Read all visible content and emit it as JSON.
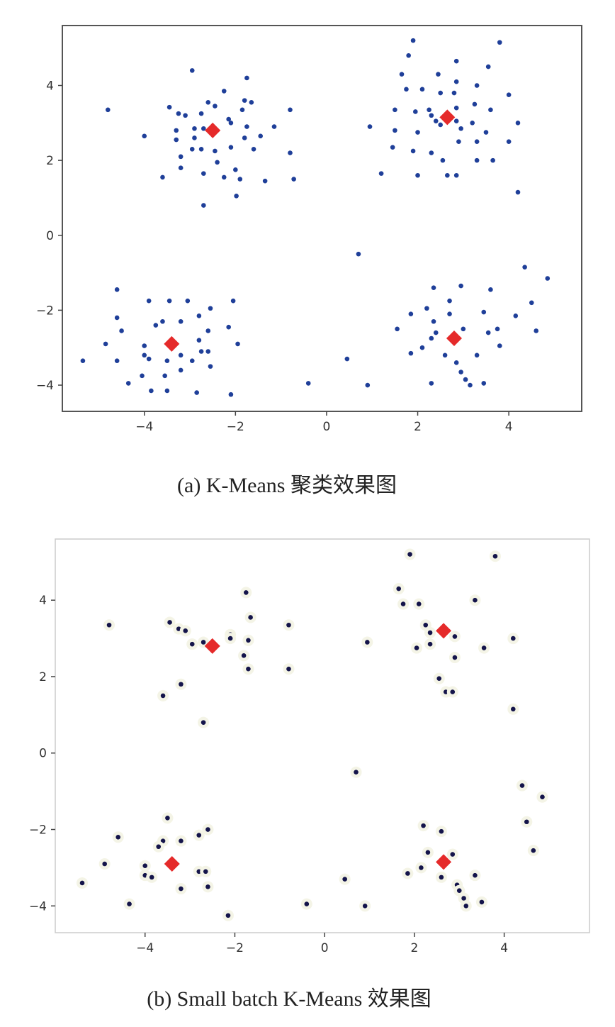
{
  "colors": {
    "points": "#1f3f99",
    "points_b": "#14144a",
    "centroids": "#e52a2a"
  },
  "chart_data": [
    {
      "type": "scatter",
      "caption": "(a) K-Means 聚类效果图",
      "xlim": [
        -5.8,
        5.6
      ],
      "ylim": [
        -4.7,
        5.6
      ],
      "xticks": [
        -4,
        -2,
        0,
        2,
        4
      ],
      "yticks": [
        -4,
        -2,
        0,
        2,
        4
      ],
      "xtick_labels": [
        "−4",
        "−2",
        "0",
        "2",
        "4"
      ],
      "ytick_labels": [
        "−4",
        "−2",
        "0",
        "2",
        "4"
      ],
      "grid": false,
      "points": [
        [
          -2.95,
          4.4
        ],
        [
          -2.6,
          3.55
        ],
        [
          -1.75,
          4.2
        ],
        [
          -4.8,
          3.35
        ],
        [
          -3.45,
          3.42
        ],
        [
          -3.25,
          3.25
        ],
        [
          -3.1,
          3.2
        ],
        [
          -2.75,
          3.25
        ],
        [
          -2.45,
          3.45
        ],
        [
          -2.25,
          3.85
        ],
        [
          -1.85,
          3.35
        ],
        [
          -1.65,
          3.55
        ],
        [
          -1.8,
          3.6
        ],
        [
          -0.8,
          3.35
        ],
        [
          -3.3,
          2.8
        ],
        [
          -2.9,
          2.85
        ],
        [
          -2.7,
          2.85
        ],
        [
          -2.5,
          2.9
        ],
        [
          -2.1,
          3.0
        ],
        [
          -2.15,
          3.1
        ],
        [
          -1.75,
          2.9
        ],
        [
          -1.45,
          2.65
        ],
        [
          -1.15,
          2.9
        ],
        [
          -4.0,
          2.65
        ],
        [
          -3.3,
          2.55
        ],
        [
          -2.9,
          2.6
        ],
        [
          -2.45,
          2.25
        ],
        [
          -2.1,
          2.35
        ],
        [
          -1.8,
          2.6
        ],
        [
          -1.6,
          2.3
        ],
        [
          -3.2,
          2.1
        ],
        [
          -2.95,
          2.3
        ],
        [
          -2.75,
          2.3
        ],
        [
          -2.4,
          1.95
        ],
        [
          -2.25,
          1.55
        ],
        [
          -2.0,
          1.75
        ],
        [
          -1.9,
          1.5
        ],
        [
          -1.35,
          1.45
        ],
        [
          -0.8,
          2.2
        ],
        [
          -0.72,
          1.5
        ],
        [
          -3.6,
          1.55
        ],
        [
          -3.2,
          1.8
        ],
        [
          -2.7,
          1.65
        ],
        [
          -2.7,
          0.8
        ],
        [
          -1.98,
          1.05
        ],
        [
          1.9,
          5.2
        ],
        [
          3.8,
          5.15
        ],
        [
          1.8,
          4.8
        ],
        [
          2.85,
          4.65
        ],
        [
          3.55,
          4.5
        ],
        [
          1.65,
          4.3
        ],
        [
          2.45,
          4.3
        ],
        [
          2.85,
          4.1
        ],
        [
          3.3,
          4.0
        ],
        [
          1.75,
          3.9
        ],
        [
          2.1,
          3.9
        ],
        [
          2.5,
          3.8
        ],
        [
          2.8,
          3.8
        ],
        [
          4.0,
          3.75
        ],
        [
          1.5,
          3.35
        ],
        [
          1.95,
          3.3
        ],
        [
          2.25,
          3.35
        ],
        [
          2.85,
          3.4
        ],
        [
          3.25,
          3.5
        ],
        [
          3.6,
          3.35
        ],
        [
          2.3,
          3.2
        ],
        [
          2.4,
          3.05
        ],
        [
          2.85,
          3.05
        ],
        [
          3.2,
          3.0
        ],
        [
          4.2,
          3.0
        ],
        [
          0.95,
          2.9
        ],
        [
          1.5,
          2.8
        ],
        [
          2.0,
          2.75
        ],
        [
          2.5,
          2.95
        ],
        [
          2.95,
          2.85
        ],
        [
          3.5,
          2.75
        ],
        [
          1.45,
          2.35
        ],
        [
          1.9,
          2.25
        ],
        [
          2.3,
          2.2
        ],
        [
          2.9,
          2.5
        ],
        [
          3.3,
          2.5
        ],
        [
          4.0,
          2.5
        ],
        [
          2.55,
          2.0
        ],
        [
          3.3,
          2.0
        ],
        [
          3.65,
          2.0
        ],
        [
          1.2,
          1.65
        ],
        [
          2.0,
          1.6
        ],
        [
          2.65,
          1.6
        ],
        [
          2.85,
          1.6
        ],
        [
          4.2,
          1.15
        ],
        [
          -4.6,
          -1.45
        ],
        [
          -3.9,
          -1.75
        ],
        [
          -3.45,
          -1.75
        ],
        [
          -3.05,
          -1.75
        ],
        [
          -2.55,
          -1.95
        ],
        [
          -2.05,
          -1.75
        ],
        [
          -4.6,
          -2.2
        ],
        [
          -3.6,
          -2.3
        ],
        [
          -3.2,
          -2.3
        ],
        [
          -2.8,
          -2.15
        ],
        [
          -4.5,
          -2.55
        ],
        [
          -3.75,
          -2.4
        ],
        [
          -2.6,
          -2.55
        ],
        [
          -2.15,
          -2.45
        ],
        [
          -4.85,
          -2.9
        ],
        [
          -4.0,
          -2.95
        ],
        [
          -2.8,
          -2.8
        ],
        [
          -1.95,
          -2.9
        ],
        [
          -4.0,
          -3.2
        ],
        [
          -3.9,
          -3.3
        ],
        [
          -3.2,
          -3.2
        ],
        [
          -2.75,
          -3.1
        ],
        [
          -2.6,
          -3.1
        ],
        [
          -5.35,
          -3.35
        ],
        [
          -4.6,
          -3.35
        ],
        [
          -3.5,
          -3.35
        ],
        [
          -2.95,
          -3.35
        ],
        [
          -3.2,
          -3.6
        ],
        [
          -2.55,
          -3.5
        ],
        [
          -4.05,
          -3.75
        ],
        [
          -3.55,
          -3.75
        ],
        [
          -4.35,
          -3.95
        ],
        [
          -3.85,
          -4.15
        ],
        [
          -3.5,
          -4.15
        ],
        [
          -2.85,
          -4.2
        ],
        [
          -2.1,
          -4.25
        ],
        [
          4.35,
          -0.85
        ],
        [
          4.85,
          -1.15
        ],
        [
          2.35,
          -1.4
        ],
        [
          2.95,
          -1.35
        ],
        [
          3.6,
          -1.45
        ],
        [
          4.5,
          -1.8
        ],
        [
          2.7,
          -1.75
        ],
        [
          1.85,
          -2.1
        ],
        [
          2.2,
          -1.95
        ],
        [
          2.7,
          -2.1
        ],
        [
          3.45,
          -2.05
        ],
        [
          4.15,
          -2.15
        ],
        [
          2.35,
          -2.3
        ],
        [
          1.55,
          -2.5
        ],
        [
          2.4,
          -2.6
        ],
        [
          3.0,
          -2.5
        ],
        [
          3.55,
          -2.6
        ],
        [
          3.75,
          -2.5
        ],
        [
          4.6,
          -2.55
        ],
        [
          2.3,
          -2.75
        ],
        [
          2.8,
          -2.85
        ],
        [
          1.85,
          -3.15
        ],
        [
          2.1,
          -3.0
        ],
        [
          2.6,
          -3.2
        ],
        [
          3.3,
          -3.2
        ],
        [
          3.8,
          -2.95
        ],
        [
          2.85,
          -3.4
        ],
        [
          2.95,
          -3.65
        ],
        [
          3.05,
          -3.85
        ],
        [
          3.15,
          -4.0
        ],
        [
          3.45,
          -3.95
        ],
        [
          2.3,
          -3.95
        ],
        [
          0.7,
          -0.5
        ],
        [
          0.45,
          -3.3
        ],
        [
          -0.4,
          -3.95
        ],
        [
          0.9,
          -4.0
        ]
      ],
      "centroids": [
        [
          -2.5,
          2.8
        ],
        [
          2.65,
          3.15
        ],
        [
          -3.4,
          -2.9
        ],
        [
          2.8,
          -2.75
        ]
      ]
    },
    {
      "type": "scatter",
      "caption": "(b) Small batch K-Means 效果图",
      "xlim": [
        -6.0,
        5.9
      ],
      "ylim": [
        -4.7,
        5.6
      ],
      "xticks": [
        -4,
        -2,
        0,
        2,
        4
      ],
      "yticks": [
        -4,
        -2,
        0,
        2,
        4
      ],
      "xtick_labels": [
        "−4",
        "−2",
        "0",
        "2",
        "4"
      ],
      "ytick_labels": [
        "−4",
        "−2",
        "0",
        "2",
        "4"
      ],
      "grid": false,
      "points": [
        [
          -1.75,
          4.2
        ],
        [
          -4.8,
          3.35
        ],
        [
          -3.45,
          3.42
        ],
        [
          -3.25,
          3.25
        ],
        [
          -3.1,
          3.2
        ],
        [
          -2.95,
          2.85
        ],
        [
          -2.7,
          2.9
        ],
        [
          -2.1,
          3.1
        ],
        [
          -2.1,
          3.0
        ],
        [
          -1.65,
          3.55
        ],
        [
          -1.7,
          2.95
        ],
        [
          -0.8,
          3.35
        ],
        [
          -1.8,
          2.55
        ],
        [
          -1.7,
          2.2
        ],
        [
          -0.8,
          2.2
        ],
        [
          -3.6,
          1.5
        ],
        [
          -3.2,
          1.8
        ],
        [
          -2.7,
          0.8
        ],
        [
          1.9,
          5.2
        ],
        [
          3.8,
          5.15
        ],
        [
          1.65,
          4.3
        ],
        [
          1.75,
          3.9
        ],
        [
          2.1,
          3.9
        ],
        [
          3.35,
          4.0
        ],
        [
          2.25,
          3.35
        ],
        [
          2.35,
          3.15
        ],
        [
          2.9,
          3.05
        ],
        [
          4.2,
          3.0
        ],
        [
          0.95,
          2.9
        ],
        [
          2.05,
          2.75
        ],
        [
          2.35,
          2.85
        ],
        [
          3.55,
          2.75
        ],
        [
          2.9,
          2.5
        ],
        [
          2.55,
          1.95
        ],
        [
          2.7,
          1.6
        ],
        [
          2.85,
          1.6
        ],
        [
          4.2,
          1.15
        ],
        [
          -3.5,
          -1.7
        ],
        [
          -4.6,
          -2.2
        ],
        [
          -3.6,
          -2.3
        ],
        [
          -3.7,
          -2.45
        ],
        [
          -3.2,
          -2.3
        ],
        [
          -2.8,
          -2.15
        ],
        [
          -2.6,
          -2.0
        ],
        [
          -4.9,
          -2.9
        ],
        [
          -4.0,
          -2.95
        ],
        [
          -4.0,
          -3.2
        ],
        [
          -3.85,
          -3.25
        ],
        [
          -2.8,
          -3.1
        ],
        [
          -2.65,
          -3.1
        ],
        [
          -5.4,
          -3.4
        ],
        [
          -3.2,
          -3.55
        ],
        [
          -2.6,
          -3.5
        ],
        [
          -4.35,
          -3.95
        ],
        [
          -2.15,
          -4.25
        ],
        [
          4.4,
          -0.85
        ],
        [
          4.85,
          -1.15
        ],
        [
          2.2,
          -1.9
        ],
        [
          2.6,
          -2.05
        ],
        [
          4.5,
          -1.8
        ],
        [
          2.3,
          -2.6
        ],
        [
          2.85,
          -2.65
        ],
        [
          4.65,
          -2.55
        ],
        [
          1.85,
          -3.15
        ],
        [
          2.15,
          -3.0
        ],
        [
          2.6,
          -3.25
        ],
        [
          3.35,
          -3.2
        ],
        [
          2.95,
          -3.45
        ],
        [
          3.0,
          -3.6
        ],
        [
          3.1,
          -3.8
        ],
        [
          3.15,
          -4.0
        ],
        [
          3.5,
          -3.9
        ],
        [
          0.7,
          -0.5
        ],
        [
          0.45,
          -3.3
        ],
        [
          -0.4,
          -3.95
        ],
        [
          0.9,
          -4.0
        ]
      ],
      "centroids": [
        [
          -2.5,
          2.8
        ],
        [
          2.65,
          3.2
        ],
        [
          -3.4,
          -2.9
        ],
        [
          2.65,
          -2.85
        ]
      ]
    }
  ]
}
